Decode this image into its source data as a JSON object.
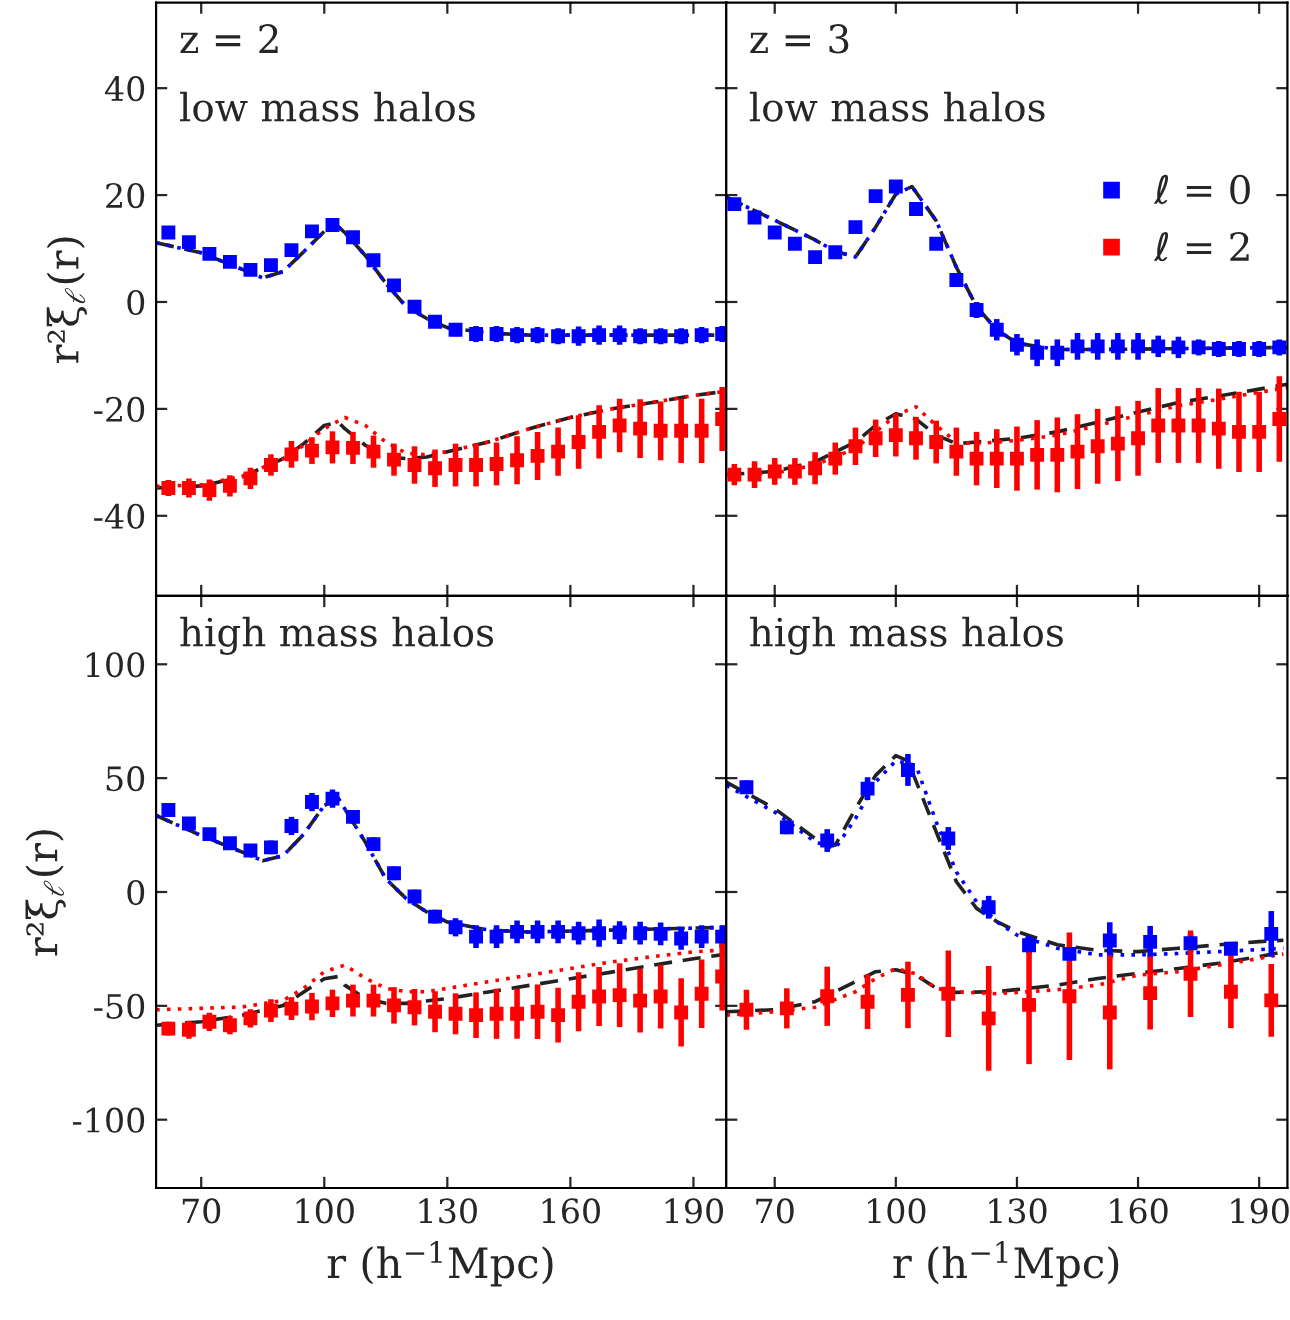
{
  "chart_data": [
    {
      "type": "scatter",
      "annotations": [
        "z = 2",
        "low mass halos"
      ],
      "ylabel": "r²ξ$_{ℓ}$(r)",
      "xlim": [
        59,
        198
      ],
      "xticks": [
        70,
        100,
        130,
        160,
        190
      ],
      "ylim": [
        -55,
        56
      ],
      "yticks": [
        -40,
        -20,
        0,
        20,
        40
      ],
      "tick_labels": "y",
      "series": [
        {
          "type": "scatter",
          "color": "#0000ff",
          "marker": "square",
          "x": [
            62,
            67,
            72,
            77,
            82,
            87,
            92,
            97,
            102,
            107,
            112,
            117,
            122,
            127,
            132,
            137,
            142,
            147,
            152,
            157,
            162,
            167,
            172,
            177,
            182,
            187,
            192,
            197
          ],
          "values": [
            13.0,
            11.2,
            9.0,
            7.5,
            6.0,
            6.9,
            9.7,
            13.2,
            14.4,
            12.1,
            7.8,
            3.1,
            -0.9,
            -3.7,
            -5.2,
            -6.0,
            -6.0,
            -6.2,
            -6.2,
            -6.4,
            -6.4,
            -6.2,
            -6.2,
            -6.4,
            -6.4,
            -6.4,
            -6.2,
            -6.0
          ],
          "errors": [
            0.8,
            0.8,
            0.8,
            0.8,
            0.8,
            0.8,
            0.8,
            0.8,
            0.8,
            0.8,
            0.8,
            0.8,
            0.8,
            1.0,
            1.2,
            1.5,
            1.5,
            1.5,
            1.5,
            1.5,
            1.8,
            1.8,
            1.8,
            1.5,
            1.5,
            1.5,
            1.5,
            1.5
          ]
        },
        {
          "type": "scatter",
          "color": "#ff0000",
          "marker": "square",
          "x": [
            62,
            67,
            72,
            77,
            82,
            87,
            92,
            97,
            102,
            107,
            112,
            117,
            122,
            127,
            132,
            137,
            142,
            147,
            152,
            157,
            162,
            167,
            172,
            177,
            182,
            187,
            192,
            197
          ],
          "values": [
            -34.8,
            -34.8,
            -35.2,
            -34.4,
            -33.0,
            -30.5,
            -28.5,
            -27.8,
            -27.2,
            -27.3,
            -28.0,
            -29.5,
            -30.5,
            -31.1,
            -30.5,
            -30.5,
            -30.3,
            -29.6,
            -28.8,
            -28.0,
            -26.2,
            -24.3,
            -23.1,
            -23.7,
            -24.1,
            -24.1,
            -24.1,
            -21.9
          ],
          "errors": [
            1.5,
            1.8,
            2,
            2,
            2,
            2,
            2.5,
            2.5,
            3,
            3,
            3,
            3,
            3.5,
            3.5,
            4,
            4,
            4,
            4.5,
            4.5,
            4.5,
            5,
            5,
            5,
            5.5,
            5.5,
            6,
            6,
            6
          ]
        },
        {
          "type": "line",
          "color": "#222222",
          "line_style": "dashed",
          "x": [
            59,
            70,
            80,
            85,
            90,
            95,
            100,
            103.5,
            105,
            110,
            115,
            120,
            125,
            130,
            140,
            150,
            198
          ],
          "values": [
            11.1,
            9.2,
            6.1,
            4.5,
            5.7,
            9.4,
            13.2,
            14.0,
            13.0,
            8.7,
            3.5,
            -0.9,
            -3.1,
            -4.8,
            -5.8,
            -6.2,
            -6.2
          ]
        },
        {
          "type": "line",
          "color": "#0000ff",
          "line_style": "dotted",
          "x": [
            59,
            70,
            80,
            85,
            90,
            95,
            100,
            103.5,
            105,
            110,
            115,
            120,
            125,
            130,
            140,
            150,
            198
          ],
          "values": [
            11.1,
            9.2,
            6.1,
            4.5,
            5.7,
            9.4,
            13.2,
            14.0,
            13.0,
            8.7,
            3.5,
            -0.9,
            -3.1,
            -4.8,
            -5.8,
            -6.2,
            -6.2
          ]
        },
        {
          "type": "line",
          "color": "#222222",
          "line_style": "dashed",
          "x": [
            59,
            70,
            80,
            90,
            95,
            100,
            103.5,
            105,
            110,
            115,
            120,
            125,
            130,
            140,
            150,
            160,
            170,
            180,
            190,
            198
          ],
          "values": [
            -34.8,
            -34.4,
            -32.7,
            -29.3,
            -26.5,
            -23.1,
            -22.5,
            -23.7,
            -26.8,
            -29.0,
            -29.3,
            -29.0,
            -28.0,
            -26.2,
            -23.7,
            -21.6,
            -20.0,
            -18.8,
            -17.5,
            -16.7
          ]
        },
        {
          "type": "line",
          "color": "#ff0000",
          "line_style": "dotted",
          "x": [
            59,
            70,
            80,
            90,
            95,
            100,
            105,
            110,
            115,
            120,
            125,
            130,
            140,
            150,
            160,
            170,
            180,
            190,
            198
          ],
          "values": [
            -34.5,
            -34.2,
            -32.6,
            -29.3,
            -26.8,
            -23.7,
            -21.6,
            -23.1,
            -26.2,
            -28.3,
            -28.6,
            -28.0,
            -26.2,
            -23.7,
            -21.6,
            -20.0,
            -18.8,
            -17.5,
            -16.7
          ]
        }
      ]
    },
    {
      "type": "scatter",
      "annotations": [
        "z = 3",
        "low mass halos"
      ],
      "xlim": [
        58,
        197
      ],
      "xticks": [
        70,
        100,
        130,
        160,
        190
      ],
      "ylim": [
        -55,
        56
      ],
      "yticks": [
        -40,
        -20,
        0,
        20,
        40
      ],
      "tick_labels": false,
      "legend": "top right",
      "series": [
        {
          "type": "scatter",
          "name": "ℓ = 0",
          "color": "#0000ff",
          "marker": "square",
          "x": [
            60,
            65,
            70,
            75,
            80,
            85,
            90,
            95,
            100,
            105,
            110,
            115,
            120,
            125,
            130,
            135,
            140,
            145,
            150,
            155,
            160,
            165,
            170,
            175,
            180,
            185,
            190,
            195
          ],
          "values": [
            18.3,
            15.8,
            13.0,
            10.9,
            8.4,
            9.3,
            14.0,
            19.8,
            21.6,
            17.4,
            10.9,
            4.1,
            -1.5,
            -5.2,
            -8.0,
            -9.5,
            -9.5,
            -8.3,
            -8.3,
            -8.3,
            -8.3,
            -8.3,
            -8.5,
            -8.5,
            -8.8,
            -8.8,
            -8.8,
            -8.5
          ],
          "errors": [
            1,
            1,
            1,
            1,
            1,
            1,
            1,
            1,
            1,
            1,
            1,
            1.2,
            1.5,
            2,
            2,
            2.5,
            2.5,
            2.5,
            2.5,
            2.5,
            2.5,
            2,
            2,
            1.5,
            1.5,
            1.5,
            1.5,
            1.5
          ]
        },
        {
          "type": "scatter",
          "name": "ℓ = 2",
          "color": "#ff0000",
          "marker": "square",
          "x": [
            60,
            65,
            70,
            75,
            80,
            85,
            90,
            95,
            100,
            105,
            110,
            115,
            120,
            125,
            130,
            135,
            140,
            145,
            150,
            155,
            160,
            165,
            170,
            175,
            180,
            185,
            190,
            195
          ],
          "values": [
            -32.3,
            -32.3,
            -31.7,
            -31.7,
            -31.1,
            -29.3,
            -27.0,
            -25.5,
            -24.9,
            -25.5,
            -26.2,
            -28.0,
            -29.3,
            -29.3,
            -29.3,
            -28.6,
            -28.6,
            -28.0,
            -27.0,
            -26.5,
            -25.5,
            -23.1,
            -23.1,
            -23.1,
            -23.7,
            -24.3,
            -24.3,
            -21.9
          ],
          "errors": [
            2,
            2.5,
            2.5,
            2.5,
            3,
            3,
            3.5,
            3.5,
            4,
            4,
            4,
            4.5,
            5,
            5.5,
            6,
            6.5,
            7,
            7,
            7,
            7,
            7,
            7,
            7,
            7,
            7.5,
            7.5,
            7.5,
            8
          ]
        },
        {
          "type": "line",
          "color": "#222222",
          "line_style": "dashed",
          "x": [
            58,
            70,
            80,
            85,
            90,
            95,
            100,
            104,
            110,
            115,
            120,
            125,
            130,
            140,
            150,
            197
          ],
          "values": [
            19.6,
            15.3,
            11.6,
            9.5,
            8.4,
            14.0,
            20.2,
            21.6,
            15.2,
            6.5,
            -0.9,
            -5.2,
            -7.7,
            -8.9,
            -8.9,
            -8.5
          ]
        },
        {
          "type": "line",
          "color": "#0000ff",
          "line_style": "dotted",
          "x": [
            58,
            70,
            80,
            85,
            90,
            95,
            100,
            104,
            110,
            115,
            120,
            125,
            130,
            140,
            150,
            197
          ],
          "values": [
            19.6,
            15.3,
            11.6,
            9.5,
            8.4,
            14.0,
            20.2,
            21.6,
            15.2,
            6.5,
            -0.9,
            -5.2,
            -7.7,
            -8.9,
            -8.9,
            -8.5
          ]
        },
        {
          "type": "line",
          "color": "#222222",
          "line_style": "dashed",
          "x": [
            58,
            70,
            80,
            90,
            95,
            100,
            105,
            110,
            115,
            120,
            130,
            140,
            150,
            160,
            170,
            180,
            190,
            197
          ],
          "values": [
            -32.3,
            -31.7,
            -29.9,
            -26.2,
            -23.1,
            -20.9,
            -21.9,
            -24.9,
            -26.5,
            -26.2,
            -25.5,
            -24.3,
            -22.5,
            -20.6,
            -18.8,
            -17.6,
            -16.3,
            -15.4
          ]
        },
        {
          "type": "line",
          "color": "#ff0000",
          "line_style": "dotted",
          "x": [
            58,
            70,
            80,
            90,
            95,
            100,
            105,
            110,
            115,
            120,
            130,
            140,
            150,
            160,
            170,
            180,
            190,
            197
          ],
          "values": [
            -32.3,
            -32.0,
            -30.5,
            -27.4,
            -24.3,
            -21.2,
            -19.6,
            -23.1,
            -26.2,
            -26.5,
            -25.9,
            -24.9,
            -23.1,
            -21.2,
            -19.4,
            -18.2,
            -16.9,
            -16.0
          ]
        }
      ]
    },
    {
      "type": "scatter",
      "annotations": [
        "high mass halos"
      ],
      "ylabel": "r²ξ$_{ℓ}$(r)",
      "xlabel": "r (h$^{−1}$Mpc)",
      "xlim": [
        59,
        198
      ],
      "xticks": [
        70,
        100,
        130,
        160,
        190
      ],
      "ylim": [
        -130,
        130
      ],
      "yticks": [
        -100,
        -50,
        0,
        50,
        100
      ],
      "series": [
        {
          "type": "scatter",
          "color": "#0000ff",
          "marker": "square",
          "x": [
            62,
            67,
            72,
            77,
            82,
            87,
            92,
            97,
            102,
            107,
            112,
            117,
            122,
            127,
            132,
            137,
            142,
            147,
            152,
            157,
            162,
            167,
            172,
            177,
            182,
            187,
            192,
            197
          ],
          "values": [
            36.0,
            30.1,
            25.4,
            21.4,
            18.2,
            19.6,
            29.0,
            39.5,
            41.0,
            33.0,
            21.0,
            8.2,
            -2.0,
            -10.8,
            -15.5,
            -19.6,
            -19.6,
            -17.5,
            -17.5,
            -17.5,
            -18.1,
            -18.1,
            -17.8,
            -18.1,
            -18.4,
            -20.4,
            -19.6,
            -19.6
          ],
          "errors": [
            2,
            2,
            2,
            2,
            2,
            3,
            4,
            4,
            4,
            3,
            3,
            3,
            3,
            3,
            4,
            5,
            5,
            5,
            5,
            5,
            5,
            6,
            5,
            5,
            5,
            5,
            5,
            5
          ]
        },
        {
          "type": "scatter",
          "color": "#ff0000",
          "marker": "square",
          "x": [
            62,
            67,
            72,
            77,
            82,
            87,
            92,
            97,
            102,
            107,
            112,
            117,
            122,
            127,
            132,
            137,
            142,
            147,
            152,
            157,
            162,
            167,
            172,
            177,
            182,
            187,
            192,
            197
          ],
          "values": [
            -60.0,
            -60.5,
            -57.0,
            -58.5,
            -55.5,
            -52.1,
            -51.2,
            -50.3,
            -48.9,
            -47.7,
            -47.7,
            -49.8,
            -50.6,
            -52.6,
            -53.5,
            -54.1,
            -53.5,
            -53.5,
            -52.6,
            -54.1,
            -48.2,
            -45.9,
            -45.3,
            -47.7,
            -45.9,
            -52.9,
            -44.7,
            -37.1
          ],
          "errors": [
            3,
            4,
            4,
            4,
            4,
            5,
            5,
            6,
            6,
            7,
            7,
            8,
            8,
            9,
            9,
            10,
            11,
            11,
            12,
            12,
            13,
            13,
            14,
            14,
            14,
            15,
            15,
            15
          ]
        },
        {
          "type": "line",
          "color": "#222222",
          "line_style": "dashed",
          "x": [
            59,
            70,
            80,
            85,
            90,
            95,
            100,
            103.5,
            105,
            110,
            115,
            120,
            125,
            130,
            140,
            150,
            198
          ],
          "values": [
            33.6,
            24.8,
            17.5,
            13.7,
            16.0,
            25.4,
            38.0,
            40.9,
            36.5,
            21.9,
            5.8,
            -3.0,
            -8.8,
            -13.2,
            -16.7,
            -17.6,
            -15.5
          ]
        },
        {
          "type": "line",
          "color": "#0000ff",
          "line_style": "dotted",
          "x": [
            59,
            70,
            80,
            85,
            90,
            95,
            100,
            103.5,
            105,
            110,
            115,
            120,
            125,
            130,
            140,
            150,
            198
          ],
          "values": [
            33.6,
            24.8,
            17.5,
            13.7,
            16.0,
            25.4,
            38.0,
            40.9,
            36.5,
            21.9,
            5.8,
            -3.0,
            -8.8,
            -13.2,
            -16.7,
            -17.6,
            -15.5
          ]
        },
        {
          "type": "line",
          "color": "#222222",
          "line_style": "dashed",
          "x": [
            59,
            70,
            80,
            90,
            95,
            100,
            103.5,
            105,
            110,
            115,
            120,
            130,
            140,
            150,
            160,
            170,
            180,
            190,
            198
          ],
          "values": [
            -58.5,
            -57.0,
            -54.1,
            -49.8,
            -43.9,
            -38.1,
            -37.1,
            -40.9,
            -46.8,
            -48.9,
            -48.9,
            -46.8,
            -43.9,
            -41.0,
            -38.1,
            -35.2,
            -32.2,
            -29.3,
            -27.3
          ]
        },
        {
          "type": "line",
          "color": "#ff0000",
          "line_style": "dotted",
          "x": [
            59,
            70,
            80,
            90,
            95,
            100,
            105,
            110,
            115,
            120,
            125,
            130,
            140,
            150,
            160,
            170,
            180,
            190,
            198
          ],
          "values": [
            -51.7,
            -51.1,
            -50.5,
            -47.6,
            -42.3,
            -35.0,
            -32.1,
            -37.9,
            -42.3,
            -43.8,
            -43.8,
            -42.3,
            -39.4,
            -36.5,
            -33.6,
            -30.7,
            -28.4,
            -26.3,
            -25.4
          ]
        }
      ]
    },
    {
      "type": "scatter",
      "annotations": [
        "high mass halos"
      ],
      "xlabel": "r (h$^{−1}$Mpc)",
      "xlim": [
        58,
        197
      ],
      "xticks": [
        70,
        100,
        130,
        160,
        190
      ],
      "ylim": [
        -130,
        130
      ],
      "yticks": [
        -100,
        -50,
        0,
        50,
        100
      ],
      "tick_labels": "x",
      "series": [
        {
          "type": "scatter",
          "color": "#0000ff",
          "marker": "square",
          "x": [
            63,
            73,
            83,
            93,
            103,
            113,
            123,
            133,
            143,
            153,
            163,
            173,
            183,
            193
          ],
          "values": [
            46.0,
            28.4,
            22.6,
            45.4,
            53.6,
            23.5,
            -6.7,
            -23.4,
            -27.2,
            -21.3,
            -21.9,
            -22.5,
            -24.9,
            -18.4
          ],
          "errors": [
            3,
            3,
            5,
            5,
            7,
            5,
            5,
            4,
            3,
            8,
            7,
            4,
            3,
            10
          ]
        },
        {
          "type": "scatter",
          "color": "#ff0000",
          "marker": "square",
          "x": [
            63,
            73,
            83,
            93,
            103,
            113,
            123,
            133,
            143,
            153,
            163,
            173,
            183,
            193
          ],
          "values": [
            -51.7,
            -51.1,
            -45.8,
            -48.2,
            -45.2,
            -44.7,
            -55.5,
            -49.6,
            -45.8,
            -52.9,
            -44.4,
            -35.9,
            -43.8,
            -47.6
          ],
          "errors": [
            8.8,
            8.8,
            13,
            12,
            14.6,
            19,
            23,
            26,
            28,
            25,
            16,
            19,
            16,
            16
          ]
        },
        {
          "type": "line",
          "color": "#222222",
          "line_style": "dashed",
          "x": [
            58,
            70,
            80,
            85,
            90,
            95,
            100,
            103,
            110,
            115,
            120,
            125,
            130,
            140,
            150,
            160,
            170,
            180,
            190,
            196
          ],
          "values": [
            48.3,
            36.6,
            23.5,
            20.6,
            36.6,
            51.2,
            59.9,
            57.6,
            26.4,
            4.5,
            -7.2,
            -13.0,
            -17.4,
            -23.2,
            -25.6,
            -26.2,
            -24.7,
            -23.2,
            -21.8,
            -21.2
          ]
        },
        {
          "type": "line",
          "color": "#0000ff",
          "line_style": "dotted",
          "x": [
            58,
            70,
            80,
            85,
            90,
            95,
            100,
            105,
            110,
            115,
            120,
            125,
            130,
            140,
            150,
            160,
            170,
            180,
            190,
            196
          ],
          "values": [
            46.8,
            35.1,
            22.0,
            19.1,
            32.2,
            48.3,
            57.6,
            55.6,
            30.8,
            8.8,
            -4.3,
            -13.0,
            -18.9,
            -24.7,
            -27.6,
            -27.6,
            -27.0,
            -26.2,
            -25.3,
            -24.7
          ]
        },
        {
          "type": "line",
          "color": "#222222",
          "line_style": "dashed",
          "x": [
            58,
            70,
            80,
            90,
            95,
            100,
            105,
            110,
            115,
            125,
            140,
            150,
            160,
            170,
            180,
            190,
            196
          ],
          "values": [
            -52.6,
            -51.7,
            -48.2,
            -39.4,
            -35.0,
            -34.2,
            -36.5,
            -42.3,
            -44.1,
            -43.8,
            -40.9,
            -38.0,
            -35.7,
            -33.6,
            -31.3,
            -28.4,
            -26.3
          ]
        },
        {
          "type": "line",
          "color": "#ff0000",
          "line_style": "dotted",
          "x": [
            58,
            70,
            80,
            90,
            95,
            100,
            105,
            110,
            115,
            125,
            140,
            150,
            160,
            170,
            180,
            190,
            196
          ],
          "values": [
            -54.1,
            -52.6,
            -50.6,
            -43.8,
            -38.0,
            -33.6,
            -35.9,
            -42.3,
            -43.8,
            -44.7,
            -42.9,
            -40.9,
            -36.5,
            -35.0,
            -32.1,
            -29.2,
            -27.2
          ]
        }
      ]
    }
  ]
}
